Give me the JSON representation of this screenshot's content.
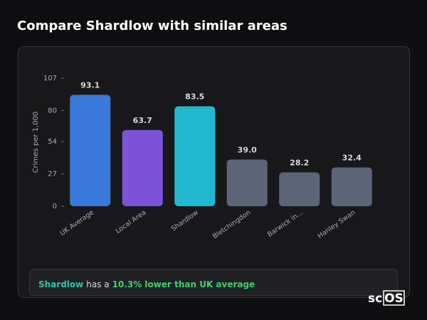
{
  "chart_data": {
    "type": "bar",
    "title": "Compare Shardlow with similar areas",
    "y_label": "Crimes per 1,000",
    "categories": [
      "UK Average",
      "Local Area",
      "Shardlow",
      "Bletchingdon",
      "Barwick in...",
      "Hanley Swan"
    ],
    "values": [
      93.1,
      63.7,
      83.5,
      39.0,
      28.2,
      32.4
    ],
    "value_labels": [
      "93.1",
      "63.7",
      "83.5",
      "39.0",
      "28.2",
      "32.4"
    ],
    "colors": [
      "#3b78dc",
      "#7b52d8",
      "#22b8cf",
      "#5b6577",
      "#5b6577",
      "#5b6577"
    ],
    "ylim": [
      0,
      107
    ],
    "yticks": [
      0,
      27,
      54,
      80,
      107
    ],
    "summary": {
      "area": "Shardlow",
      "text": "has a",
      "highlight": "10.3% lower than UK average"
    },
    "logo": {
      "left": "sc",
      "boxed": "OS"
    }
  }
}
